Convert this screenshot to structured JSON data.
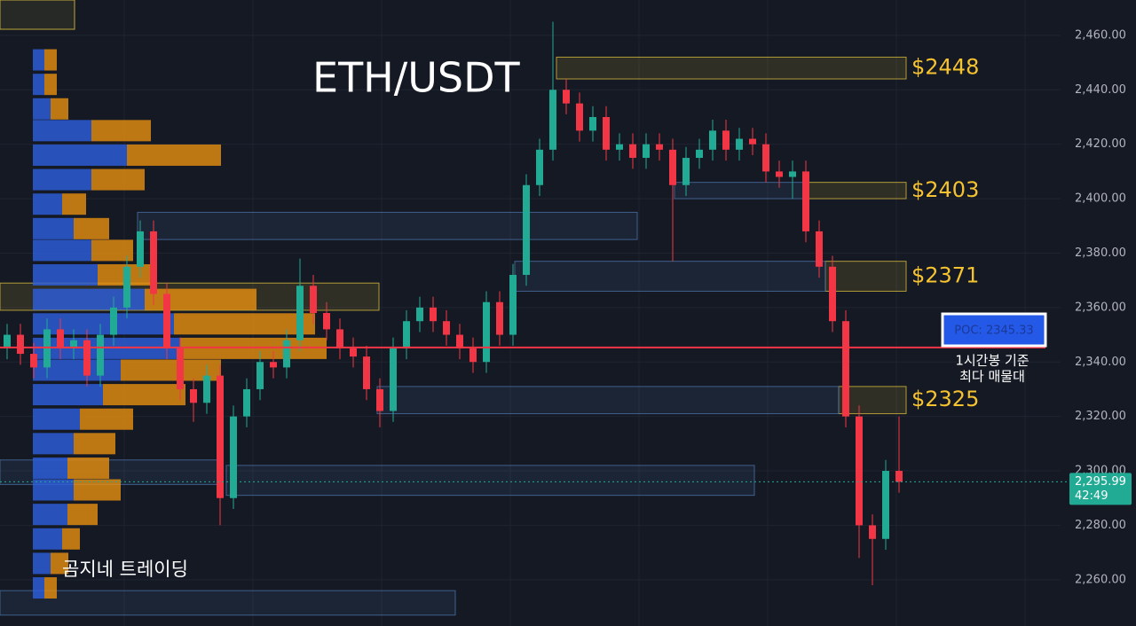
{
  "chart_data": {
    "type": "candlestick",
    "title": "ETH/USDT",
    "ylim": [
      2243,
      2473
    ],
    "yticks": [
      {
        "value": 2460,
        "label": "2,460.00"
      },
      {
        "value": 2440,
        "label": "2,440.00"
      },
      {
        "value": 2420,
        "label": "2,420.00"
      },
      {
        "value": 2400,
        "label": "2,400.00"
      },
      {
        "value": 2380,
        "label": "2,380.00"
      },
      {
        "value": 2360,
        "label": "2,360.00"
      },
      {
        "value": 2340,
        "label": "2,340.00"
      },
      {
        "value": 2320,
        "label": "2,320.00"
      },
      {
        "value": 2300,
        "label": "2,300.00"
      },
      {
        "value": 2280,
        "label": "2,280.00"
      },
      {
        "value": 2260,
        "label": "2,260.00"
      }
    ],
    "grid": true,
    "up_color": "#22ab94",
    "down_color": "#f23645",
    "open": [
      2345,
      2350,
      2343,
      2338,
      2352,
      2345,
      2348,
      2335,
      2350,
      2360,
      2375,
      2388,
      2365,
      2345,
      2330,
      2325,
      2335,
      2290,
      2320,
      2330,
      2340,
      2338,
      2348,
      2368,
      2358,
      2352,
      2345,
      2342,
      2330,
      2322,
      2345,
      2355,
      2360,
      2355,
      2350,
      2345,
      2340,
      2362,
      2350,
      2372,
      2405,
      2418,
      2440,
      2435,
      2425,
      2430,
      2418,
      2420,
      2415,
      2420,
      2418,
      2405,
      2415,
      2418,
      2425,
      2418,
      2422,
      2420,
      2410,
      2408,
      2410,
      2388,
      2375,
      2355,
      2320,
      2280,
      2275,
      2300
    ],
    "high": [
      2354,
      2354,
      2347,
      2356,
      2356,
      2352,
      2352,
      2354,
      2364,
      2379,
      2392,
      2392,
      2369,
      2349,
      2334,
      2339,
      2339,
      2324,
      2334,
      2344,
      2344,
      2352,
      2378,
      2372,
      2362,
      2356,
      2349,
      2346,
      2334,
      2349,
      2359,
      2364,
      2364,
      2359,
      2354,
      2349,
      2366,
      2366,
      2376,
      2409,
      2422,
      2465,
      2444,
      2439,
      2434,
      2434,
      2424,
      2424,
      2424,
      2424,
      2422,
      2419,
      2422,
      2429,
      2429,
      2426,
      2426,
      2424,
      2414,
      2414,
      2414,
      2392,
      2379,
      2359,
      2324,
      2284,
      2304,
      2320
    ],
    "low": [
      2341,
      2339,
      2334,
      2334,
      2341,
      2341,
      2331,
      2331,
      2346,
      2356,
      2371,
      2361,
      2341,
      2326,
      2318,
      2321,
      2280,
      2286,
      2316,
      2326,
      2334,
      2334,
      2344,
      2354,
      2348,
      2341,
      2338,
      2326,
      2316,
      2318,
      2341,
      2351,
      2351,
      2346,
      2341,
      2336,
      2336,
      2346,
      2346,
      2368,
      2401,
      2414,
      2431,
      2421,
      2421,
      2414,
      2414,
      2411,
      2411,
      2414,
      2377,
      2401,
      2411,
      2414,
      2414,
      2414,
      2416,
      2406,
      2404,
      2400,
      2384,
      2371,
      2351,
      2316,
      2268,
      2258,
      2271,
      2292
    ],
    "close": [
      2350,
      2343,
      2338,
      2352,
      2345,
      2348,
      2335,
      2350,
      2360,
      2375,
      2388,
      2365,
      2345,
      2330,
      2325,
      2335,
      2290,
      2320,
      2330,
      2340,
      2338,
      2348,
      2368,
      2358,
      2352,
      2345,
      2342,
      2330,
      2322,
      2345,
      2355,
      2360,
      2355,
      2350,
      2345,
      2340,
      2362,
      2350,
      2372,
      2405,
      2418,
      2440,
      2435,
      2425,
      2430,
      2418,
      2420,
      2415,
      2420,
      2418,
      2405,
      2415,
      2418,
      2425,
      2418,
      2422,
      2420,
      2410,
      2408,
      2410,
      2388,
      2375,
      2355,
      2320,
      2280,
      2275,
      2300,
      2295.99
    ],
    "zones": [
      {
        "high": 2452,
        "low": 2444,
        "color": "#d4b93c",
        "label": "$2448"
      },
      {
        "high": 2406,
        "low": 2400,
        "color": "#d4b93c",
        "label": "$2403"
      },
      {
        "high": 2377,
        "low": 2366,
        "color": "#d4b93c",
        "label": "$2371"
      },
      {
        "high": 2331,
        "low": 2321,
        "color": "#d4b93c",
        "label": "$2325"
      },
      {
        "high": 2395,
        "low": 2385,
        "color": "#4a6fa5"
      },
      {
        "high": 2377,
        "low": 2366,
        "color": "#4a6fa5"
      },
      {
        "high": 2406,
        "low": 2400,
        "color": "#4a6fa5"
      },
      {
        "high": 2331,
        "low": 2321,
        "color": "#4a6fa5"
      },
      {
        "high": 2302,
        "low": 2291,
        "color": "#4a6fa5"
      },
      {
        "high": 2369,
        "low": 2359,
        "color": "#d4b93c"
      },
      {
        "high": 2304,
        "low": 2295,
        "color": "#4a6fa5"
      },
      {
        "high": 2256,
        "low": 2247,
        "color": "#4a6fa5"
      }
    ],
    "volume_profile": {
      "levels": [
        2451,
        2442,
        2433,
        2425,
        2416,
        2407,
        2398,
        2389,
        2381,
        2372,
        2363,
        2354,
        2345,
        2337,
        2328,
        2319,
        2310,
        2301,
        2293,
        2284,
        2275,
        2266,
        2257
      ],
      "buy": [
        13,
        13,
        20,
        66,
        106,
        66,
        33,
        46,
        66,
        73,
        126,
        159,
        166,
        99,
        79,
        53,
        46,
        39,
        46,
        39,
        33,
        20,
        13
      ],
      "sell": [
        14,
        14,
        20,
        67,
        106,
        60,
        27,
        40,
        47,
        67,
        126,
        159,
        165,
        113,
        93,
        60,
        47,
        47,
        53,
        34,
        20,
        20,
        14
      ],
      "buy_color": "#2d5fe0",
      "sell_color": "#e8900f"
    },
    "poc": {
      "value": 2345.33,
      "label": "POC: 2345.33",
      "color": "#f23645"
    },
    "poc_note": [
      "1시간봉 기준",
      "최다 매물대"
    ],
    "last_price": {
      "value": 2295.99,
      "label": "2,295.99"
    },
    "countdown": "42:49",
    "watermark": "곰지네 트레이딩"
  }
}
